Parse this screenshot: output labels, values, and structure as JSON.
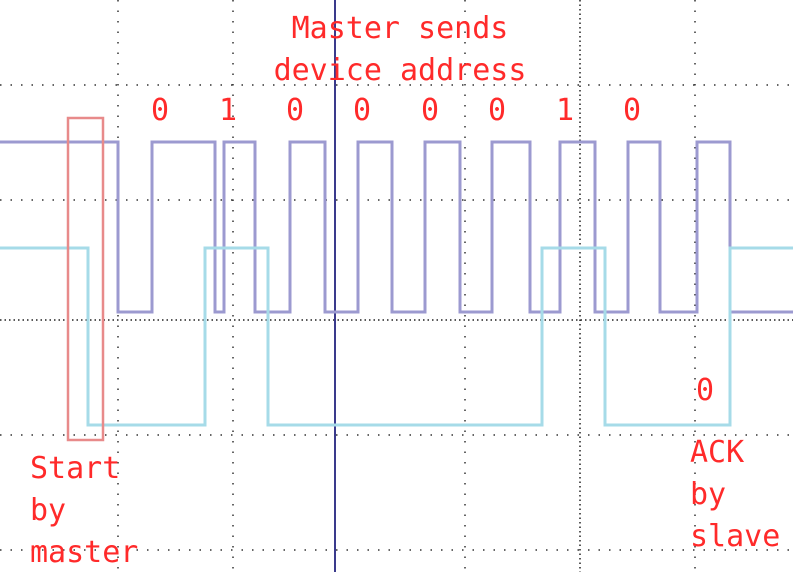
{
  "annotations": {
    "title": [
      "Master sends",
      "device address"
    ],
    "bits": [
      "0",
      "1",
      "0",
      "0",
      "0",
      "0",
      "1",
      "0"
    ],
    "start_label": [
      "Start",
      "by",
      "master"
    ],
    "ack_bit": "0",
    "ack_label": [
      "ACK",
      "by",
      "slave"
    ]
  }
}
